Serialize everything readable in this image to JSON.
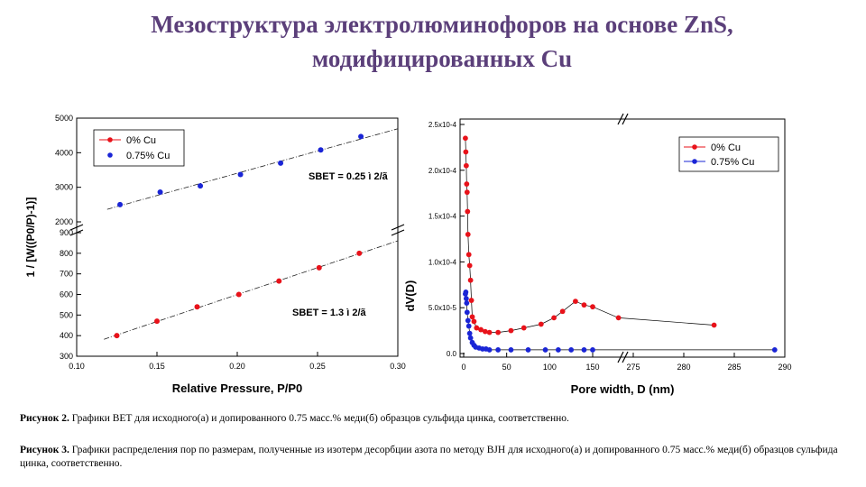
{
  "slide": {
    "title_line1": "Мезоструктура электролюминофоров на основе ZnS,",
    "title_line2": "модифицированных Cu",
    "title_color": "#5b3f7a"
  },
  "captions": {
    "fig2_label": "Рисунок 2.",
    "fig2_text": " Графики BET для исходного(а) и допированного 0.75 масс.% меди(б) образцов сульфида цинка, соответственно.",
    "fig3_label": "Рисунок 3.",
    "fig3_text": " Графики распределения пор по размерам, полученные из изотерм десорбции азота по методу BJH для исходного(а) и допированного 0.75 масс.% меди(б) образцов сульфида цинка, соответственно."
  },
  "colors": {
    "red": "#e8121a",
    "blue": "#1a25d6",
    "axis": "#000000",
    "fit": "#222222"
  },
  "chart_data": [
    {
      "type": "scatter",
      "xlabel": "Relative Pressure, P/P0",
      "ylabel": "1 / [W((P0/P)-1)]",
      "x_ticks": [
        "0.10",
        "0.15",
        "0.20",
        "0.25",
        "0.30"
      ],
      "xlim": [
        0.1,
        0.3
      ],
      "y_axis_broken": true,
      "ylim_lower": [
        300,
        900
      ],
      "ylim_upper": [
        2000,
        5000
      ],
      "y_ticks_lower": [
        "300",
        "400",
        "500",
        "600",
        "700",
        "800",
        "900"
      ],
      "y_ticks_upper": [
        "2000",
        "3000",
        "4000",
        "5000"
      ],
      "legend_position": "top-left",
      "annotations": [
        "SBET = 0.25 ì 2/ã",
        "SBET = 1.3 ì 2/ã"
      ],
      "series": [
        {
          "name": "0% Cu",
          "color": "#e8121a",
          "marker": "circle",
          "fit_line": true,
          "x": [
            0.125,
            0.15,
            0.175,
            0.201,
            0.226,
            0.251,
            0.276
          ],
          "y": [
            400,
            470,
            540,
            600,
            665,
            730,
            800
          ]
        },
        {
          "name": "0.75% Cu",
          "color": "#1a25d6",
          "marker": "circle",
          "fit_line": true,
          "x": [
            0.127,
            0.152,
            0.177,
            0.202,
            0.227,
            0.252,
            0.277
          ],
          "y": [
            2500,
            2860,
            3040,
            3370,
            3700,
            4080,
            4470
          ]
        }
      ]
    },
    {
      "type": "line",
      "xlabel": "Pore width, D (nm)",
      "ylabel": "dV(D)",
      "x_axis_broken": true,
      "x_ticks_left": [
        "0",
        "50",
        "100",
        "150"
      ],
      "x_ticks_right": [
        "275",
        "280",
        "285",
        "290"
      ],
      "xlim_left": [
        0,
        175
      ],
      "xlim_right": [
        270,
        290
      ],
      "y_ticks": [
        "0.0",
        "5.0x10-5",
        "1.0x10-4",
        "1.5x10-4",
        "2.0x10-4",
        "2.5x10-4"
      ],
      "ylim": [
        0,
        0.00025
      ],
      "legend_position": "top-right",
      "series": [
        {
          "name": "0% Cu",
          "color": "#e8121a",
          "marker": "circle",
          "x": [
            2,
            2.5,
            3,
            3.5,
            4,
            4.5,
            5,
            6,
            7,
            8,
            9,
            10,
            12,
            15,
            20,
            25,
            30,
            40,
            55,
            70,
            90,
            105,
            115,
            130,
            140,
            150,
            180,
            283
          ],
          "y": [
            0.000235,
            0.00022,
            0.000205,
            0.000185,
            0.000176,
            0.000155,
            0.00013,
            0.000108,
            9.6e-05,
            8e-05,
            5.8e-05,
            4e-05,
            3.5e-05,
            2.8e-05,
            2.6e-05,
            2.4e-05,
            2.3e-05,
            2.3e-05,
            2.5e-05,
            2.8e-05,
            3.2e-05,
            3.9e-05,
            4.6e-05,
            5.7e-05,
            5.3e-05,
            5.1e-05,
            3.9e-05,
            3.1e-05
          ]
        },
        {
          "name": "0.75% Cu",
          "color": "#1a25d6",
          "marker": "circle",
          "x": [
            2,
            2.5,
            3,
            3.5,
            4,
            5,
            6,
            7,
            8,
            10,
            12,
            14,
            18,
            22,
            26,
            30,
            40,
            55,
            75,
            95,
            110,
            125,
            140,
            150,
            289
          ],
          "y": [
            6.5e-05,
            6.7e-05,
            6e-05,
            5.5e-05,
            4.5e-05,
            3.6e-05,
            3e-05,
            2.2e-05,
            1.7e-05,
            1.2e-05,
            9e-06,
            7e-06,
            6e-06,
            5e-06,
            5e-06,
            4e-06,
            4e-06,
            4e-06,
            4e-06,
            4e-06,
            4e-06,
            4e-06,
            4e-06,
            4e-06,
            4e-06
          ]
        }
      ]
    }
  ]
}
